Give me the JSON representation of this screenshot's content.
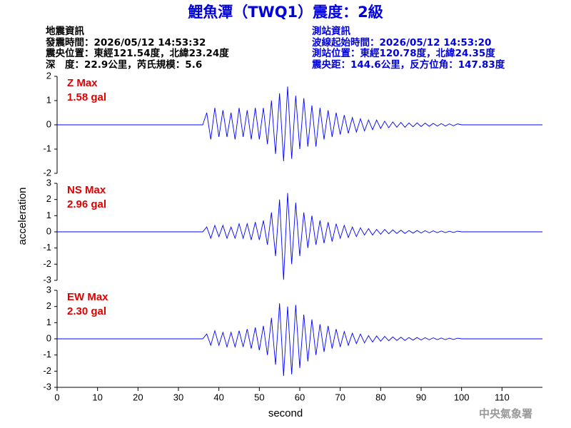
{
  "header": {
    "title": "鯉魚潭（TWQ1）震度：2級",
    "left": [
      "地震資訊",
      "發震時間：2026/05/12 14:53:32",
      "震央位置：東經121.54度，北緯23.24度",
      "深　度：22.9公里，芮氏規模：5.6"
    ],
    "right": [
      "測站資訊",
      "波線起始時間：2026/05/12 14:53:20",
      "測站位置：東經120.78度，北緯24.35度",
      "震央距：144.6公里，反方位角：147.83度"
    ],
    "ylabel": "acceleration",
    "footer": "中央氣象署"
  },
  "chart_data": [
    {
      "type": "line",
      "label": "Z Max",
      "max_label": "1.58 gal",
      "color": "#0000ff",
      "xlim": [
        0,
        120
      ],
      "ylim": [
        -2,
        2
      ],
      "yticks": [
        -2,
        -1,
        0,
        1,
        2
      ],
      "x": [
        0,
        36,
        37,
        38,
        39,
        40,
        41,
        42,
        43,
        44,
        45,
        46,
        47,
        48,
        49,
        50,
        51,
        52,
        53,
        54,
        55,
        56,
        57,
        58,
        59,
        60,
        61,
        62,
        63,
        64,
        65,
        66,
        67,
        68,
        69,
        70,
        71,
        72,
        73,
        74,
        75,
        76,
        77,
        78,
        79,
        80,
        81,
        82,
        83,
        84,
        85,
        86,
        87,
        88,
        89,
        90,
        91,
        92,
        93,
        94,
        95,
        96,
        97,
        98,
        99,
        100,
        120
      ],
      "values": [
        0,
        0,
        0.5,
        -0.6,
        0.7,
        -0.5,
        0.6,
        -0.5,
        0.5,
        -0.6,
        0.7,
        -0.5,
        0.6,
        -0.6,
        0.7,
        -0.6,
        0.7,
        -0.8,
        1.0,
        -1.2,
        1.3,
        -1.5,
        1.58,
        -1.4,
        1.2,
        -1.0,
        1.1,
        -0.9,
        0.8,
        -0.9,
        0.7,
        -0.6,
        0.6,
        -0.5,
        0.5,
        -0.4,
        0.4,
        -0.35,
        0.3,
        -0.3,
        0.25,
        -0.25,
        0.2,
        -0.2,
        0.2,
        -0.15,
        0.15,
        -0.12,
        0.12,
        -0.1,
        0.1,
        -0.1,
        0.08,
        -0.08,
        0.08,
        -0.07,
        0.07,
        -0.06,
        0.06,
        -0.05,
        0.05,
        -0.05,
        0.04,
        -0.04,
        0.04,
        0,
        0
      ]
    },
    {
      "type": "line",
      "label": "NS Max",
      "max_label": "2.96 gal",
      "color": "#0000ff",
      "xlim": [
        0,
        120
      ],
      "ylim": [
        -3,
        3
      ],
      "yticks": [
        -3,
        -2,
        -1,
        0,
        1,
        2,
        3
      ],
      "x": [
        0,
        36,
        37,
        38,
        39,
        40,
        41,
        42,
        43,
        44,
        45,
        46,
        47,
        48,
        49,
        50,
        51,
        52,
        53,
        54,
        55,
        56,
        57,
        58,
        59,
        60,
        61,
        62,
        63,
        64,
        65,
        66,
        67,
        68,
        69,
        70,
        71,
        72,
        73,
        74,
        75,
        76,
        77,
        78,
        79,
        80,
        81,
        82,
        83,
        84,
        85,
        86,
        87,
        88,
        89,
        90,
        91,
        92,
        93,
        94,
        95,
        96,
        97,
        98,
        99,
        100,
        120
      ],
      "values": [
        0,
        0,
        0.3,
        -0.4,
        0.4,
        -0.3,
        0.4,
        -0.4,
        0.3,
        -0.4,
        0.5,
        -0.4,
        0.5,
        -0.5,
        0.6,
        -0.5,
        0.7,
        -0.8,
        1.2,
        -1.5,
        2.0,
        -2.96,
        2.4,
        -2.0,
        1.8,
        -1.5,
        1.2,
        -1.0,
        1.0,
        -0.8,
        0.7,
        -0.7,
        0.6,
        -0.6,
        0.5,
        -0.4,
        0.4,
        -0.35,
        0.3,
        -0.3,
        0.25,
        -0.2,
        0.2,
        -0.2,
        0.15,
        -0.15,
        0.15,
        -0.12,
        0.12,
        -0.1,
        0.1,
        -0.1,
        0.08,
        -0.08,
        0.08,
        -0.07,
        0.07,
        -0.06,
        0.06,
        -0.05,
        0.05,
        -0.05,
        0.04,
        -0.04,
        0.04,
        0,
        0
      ]
    },
    {
      "type": "line",
      "label": "EW Max",
      "max_label": "2.30 gal",
      "color": "#0000ff",
      "xlim": [
        0,
        120
      ],
      "ylim": [
        -3,
        3
      ],
      "yticks": [
        -3,
        -2,
        -1,
        0,
        1,
        2,
        3
      ],
      "xticks": [
        0,
        10,
        20,
        30,
        40,
        50,
        60,
        70,
        80,
        90,
        100,
        110
      ],
      "xlabel": "second",
      "x": [
        0,
        36,
        37,
        38,
        39,
        40,
        41,
        42,
        43,
        44,
        45,
        46,
        47,
        48,
        49,
        50,
        51,
        52,
        53,
        54,
        55,
        56,
        57,
        58,
        59,
        60,
        61,
        62,
        63,
        64,
        65,
        66,
        67,
        68,
        69,
        70,
        71,
        72,
        73,
        74,
        75,
        76,
        77,
        78,
        79,
        80,
        81,
        82,
        83,
        84,
        85,
        86,
        87,
        88,
        89,
        90,
        91,
        92,
        93,
        94,
        95,
        96,
        97,
        98,
        99,
        100,
        120
      ],
      "values": [
        0,
        0,
        0.3,
        -0.4,
        0.5,
        -0.4,
        0.4,
        -0.5,
        0.4,
        -0.5,
        0.5,
        -0.5,
        0.6,
        -0.6,
        0.7,
        -0.7,
        0.8,
        -1.0,
        1.3,
        -1.6,
        2.2,
        -2.3,
        2.0,
        -2.2,
        2.1,
        -1.8,
        1.5,
        -1.4,
        1.2,
        -1.0,
        0.9,
        -0.8,
        0.8,
        -0.6,
        0.6,
        -0.5,
        0.45,
        -0.4,
        0.35,
        -0.3,
        0.3,
        -0.25,
        0.2,
        -0.2,
        0.18,
        -0.15,
        0.15,
        -0.12,
        0.12,
        -0.1,
        0.1,
        -0.1,
        0.08,
        -0.08,
        0.08,
        -0.07,
        0.07,
        -0.06,
        0.06,
        -0.05,
        0.05,
        -0.05,
        0.04,
        -0.04,
        0.04,
        0,
        0
      ]
    }
  ]
}
